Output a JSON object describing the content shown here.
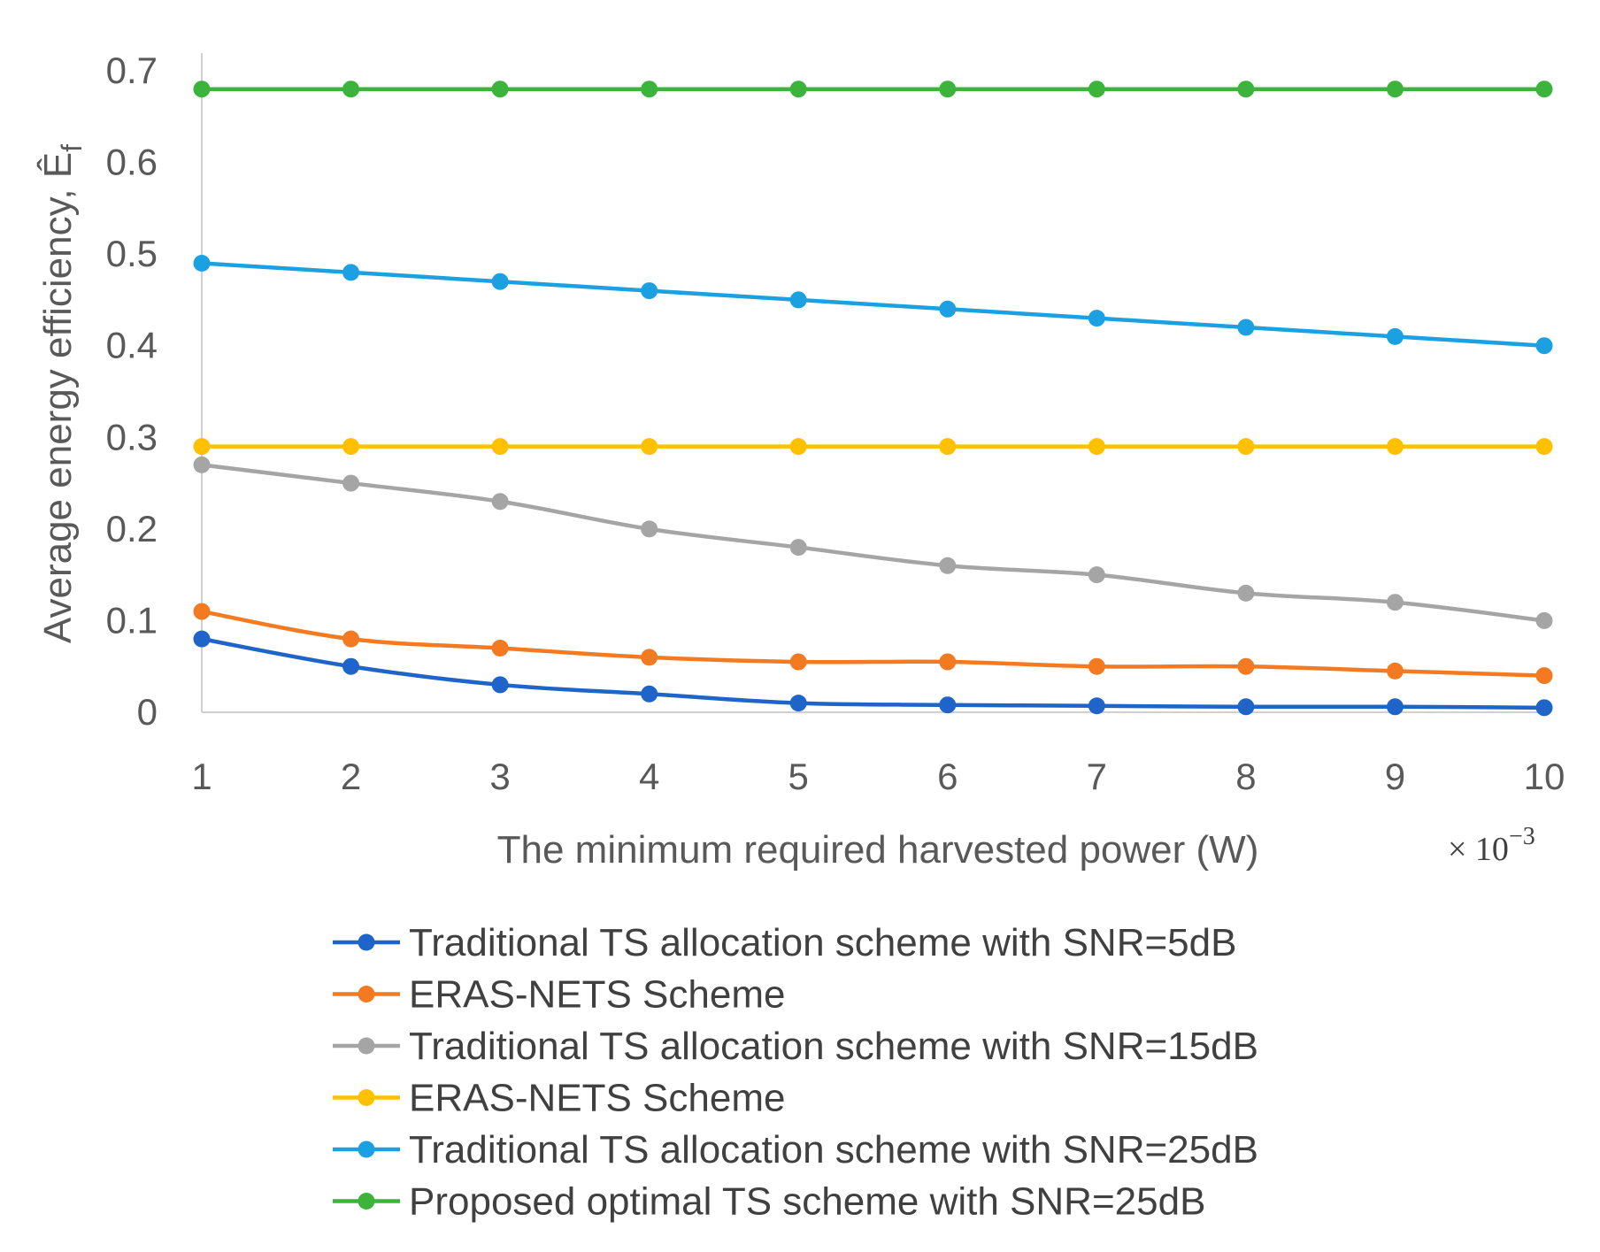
{
  "chart_data": {
    "type": "line",
    "title": "",
    "xlabel": "The minimum required harvested power (W)",
    "x_multiplier": "× 10",
    "x_multiplier_exp": "−3",
    "ylabel": "Average energy efficiency, Ê",
    "ylabel_sub": "f",
    "x": [
      1,
      2,
      3,
      4,
      5,
      6,
      7,
      8,
      9,
      10
    ],
    "x_tick_labels": [
      "1",
      "2",
      "3",
      "4",
      "5",
      "6",
      "7",
      "8",
      "9",
      "10"
    ],
    "y_ticks": [
      0,
      0.1,
      0.2,
      0.3,
      0.4,
      0.5,
      0.6,
      0.7
    ],
    "y_tick_labels": [
      "0",
      "0.1",
      "0.2",
      "0.3",
      "0.4",
      "0.5",
      "0.6",
      "0.7"
    ],
    "xlim": [
      1,
      10
    ],
    "ylim": [
      0,
      0.7
    ],
    "grid": false,
    "legend_position": "bottom",
    "series": [
      {
        "name": "Traditional TS allocation scheme with SNR=5dB",
        "color": "#1f64c8",
        "values": [
          0.08,
          0.05,
          0.03,
          0.02,
          0.01,
          0.008,
          0.007,
          0.006,
          0.006,
          0.005
        ]
      },
      {
        "name": "ERAS-NETS Scheme",
        "color": "#f47a22",
        "values": [
          0.11,
          0.08,
          0.07,
          0.06,
          0.055,
          0.055,
          0.05,
          0.05,
          0.045,
          0.04
        ]
      },
      {
        "name": "Traditional TS allocation scheme with SNR=15dB",
        "color": "#a5a5a5",
        "values": [
          0.27,
          0.25,
          0.23,
          0.2,
          0.18,
          0.16,
          0.15,
          0.13,
          0.12,
          0.1
        ]
      },
      {
        "name": "ERAS-NETS Scheme",
        "color": "#ffc000",
        "values": [
          0.29,
          0.29,
          0.29,
          0.29,
          0.29,
          0.29,
          0.29,
          0.29,
          0.29,
          0.29
        ]
      },
      {
        "name": "Traditional TS allocation scheme with SNR=25dB",
        "color": "#1ba1e2",
        "values": [
          0.49,
          0.48,
          0.47,
          0.46,
          0.45,
          0.44,
          0.43,
          0.42,
          0.41,
          0.4
        ]
      },
      {
        "name": "Proposed optimal TS scheme with SNR=25dB",
        "color": "#3cb43c",
        "values": [
          0.68,
          0.68,
          0.68,
          0.68,
          0.68,
          0.68,
          0.68,
          0.68,
          0.68,
          0.68
        ]
      }
    ]
  }
}
